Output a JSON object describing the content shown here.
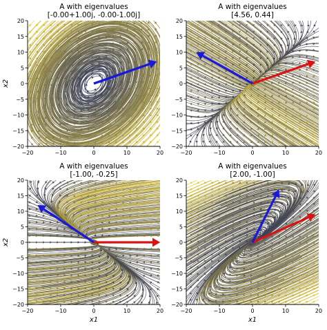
{
  "chart_data": [
    {
      "type": "streamplot",
      "title": "A with eigenvalues",
      "subtitle": "[-0.00+1.00j,  -0.00-1.00j]",
      "ylabel": "x2",
      "xlabel": "",
      "xlim": [
        -20,
        20
      ],
      "ylim": [
        -20,
        20
      ],
      "xticks": [
        -20,
        -10,
        0,
        10,
        20
      ],
      "yticks": [
        -20,
        -15,
        -10,
        -5,
        0,
        5,
        10,
        15,
        20
      ],
      "eigenvalues": [
        "-0.00+1.00j",
        "-0.00-1.00j"
      ],
      "arrows": [
        {
          "color": "#1a1ad6",
          "from": [
            0,
            0
          ],
          "to": [
            19,
            7
          ]
        },
        {
          "color": "#1a1ad6",
          "from": [
            0,
            0
          ],
          "to": [
            19,
            7
          ]
        }
      ]
    },
    {
      "type": "streamplot",
      "title": "A with eigenvalues",
      "subtitle": "[4.56,  0.44]",
      "ylabel": "",
      "xlabel": "",
      "xlim": [
        -20,
        20
      ],
      "ylim": [
        -20,
        20
      ],
      "xticks": [
        -20,
        -10,
        0,
        10,
        20
      ],
      "yticks": [
        -20,
        -15,
        -10,
        -5,
        0,
        5,
        10,
        15,
        20
      ],
      "eigenvalues": [
        4.56,
        0.44
      ],
      "arrows": [
        {
          "color": "#dd1111",
          "from": [
            0,
            0
          ],
          "to": [
            19,
            7
          ]
        },
        {
          "color": "#1a1ad6",
          "from": [
            0,
            0
          ],
          "to": [
            -17,
            10
          ]
        }
      ]
    },
    {
      "type": "streamplot",
      "title": "A with eigenvalues",
      "subtitle": "[-1.00,  -0.25]",
      "ylabel": "x2",
      "xlabel": "x1",
      "xlim": [
        -20,
        20
      ],
      "ylim": [
        -20,
        20
      ],
      "xticks": [
        -20,
        -10,
        0,
        10,
        20
      ],
      "yticks": [
        -20,
        -15,
        -10,
        -5,
        0,
        5,
        10,
        15,
        20
      ],
      "eigenvalues": [
        -1.0,
        -0.25
      ],
      "arrows": [
        {
          "color": "#dd1111",
          "from": [
            0,
            0
          ],
          "to": [
            20,
            0
          ]
        },
        {
          "color": "#1a1ad6",
          "from": [
            0,
            0
          ],
          "to": [
            -17,
            12
          ]
        }
      ]
    },
    {
      "type": "streamplot",
      "title": "A with eigenvalues",
      "subtitle": "[2.00,  -1.00]",
      "ylabel": "",
      "xlabel": "x1",
      "xlim": [
        -20,
        20
      ],
      "ylim": [
        -20,
        20
      ],
      "xticks": [
        -20,
        -10,
        0,
        10,
        20
      ],
      "yticks": [
        -20,
        -15,
        -10,
        -5,
        0,
        5,
        10,
        15,
        20
      ],
      "eigenvalues": [
        2.0,
        -1.0
      ],
      "arrows": [
        {
          "color": "#dd1111",
          "from": [
            0,
            0
          ],
          "to": [
            19,
            9
          ]
        },
        {
          "color": "#1a1ad6",
          "from": [
            0,
            0
          ],
          "to": [
            8,
            17
          ]
        }
      ]
    }
  ]
}
